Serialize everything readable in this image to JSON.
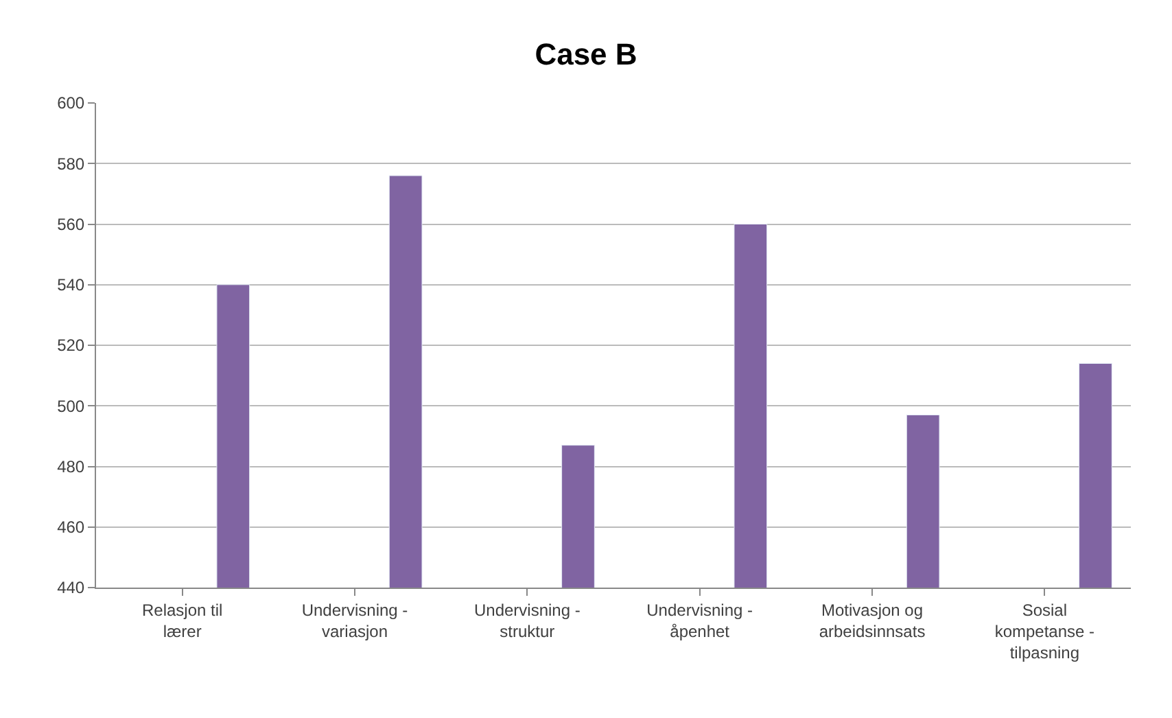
{
  "chart_data": {
    "type": "bar",
    "title": "Case B",
    "categories": [
      "Relasjon til lærer",
      "Undervisning - variasjon",
      "Undervisning - struktur",
      "Undervisning - åpenhet",
      "Motivasjon og arbeidsinnsats",
      "Sosial kompetanse - tilpasning"
    ],
    "values": [
      540,
      576,
      487,
      560,
      497,
      514
    ],
    "color": "#8064a2",
    "ylim": [
      440,
      600
    ],
    "yticks": [
      440,
      460,
      480,
      500,
      520,
      540,
      560,
      580,
      600
    ],
    "grid": "y",
    "legend": false
  }
}
